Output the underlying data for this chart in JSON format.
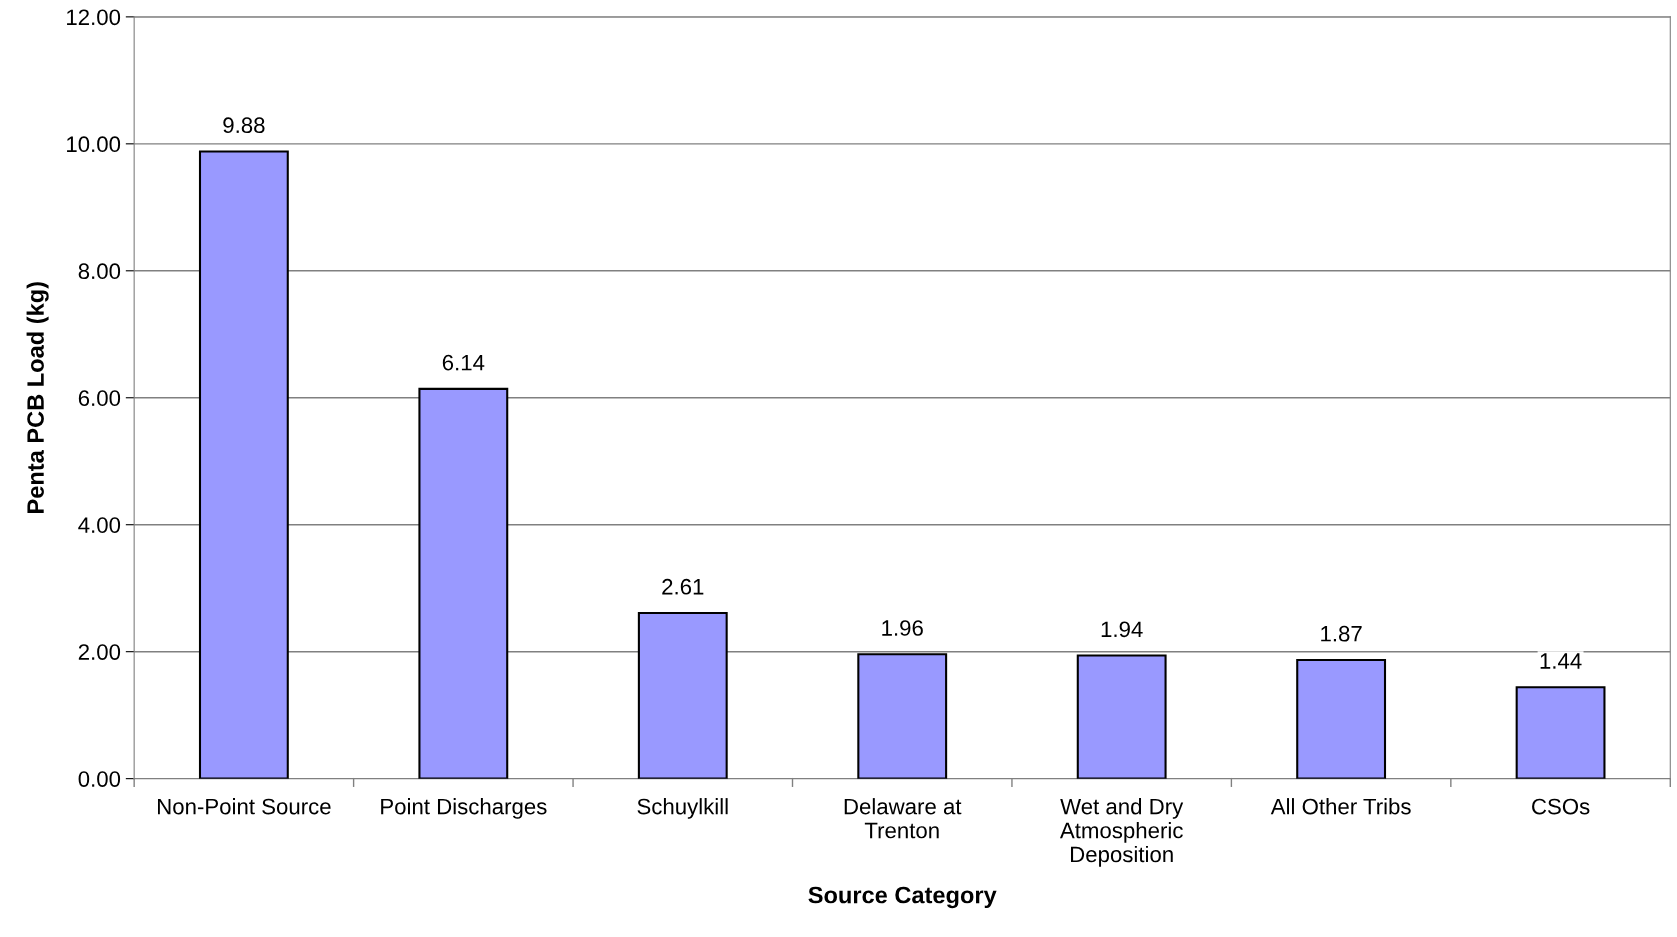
{
  "chart_data": {
    "type": "bar",
    "xlabel": "Source Category",
    "ylabel": "Penta PCB Load (kg)",
    "categories": [
      "Non-Point Source",
      "Point Discharges",
      "Schuylkill",
      "Delaware at\nTrenton",
      "Wet and Dry\nAtmospheric\nDeposition",
      "All Other Tribs",
      "CSOs"
    ],
    "values": [
      9.88,
      6.14,
      2.61,
      1.96,
      1.94,
      1.87,
      1.44
    ],
    "color": "#9999ff",
    "ylim": [
      0,
      12
    ],
    "yticks": [
      {
        "value": 0,
        "label": "0.00"
      },
      {
        "value": 2,
        "label": "2.00"
      },
      {
        "value": 4,
        "label": "4.00"
      },
      {
        "value": 6,
        "label": "6.00"
      },
      {
        "value": 8,
        "label": "8.00"
      },
      {
        "value": 10,
        "label": "10.00"
      },
      {
        "value": 12,
        "label": "12.00"
      }
    ],
    "grid": "y",
    "data_labels": true,
    "legend": false
  }
}
